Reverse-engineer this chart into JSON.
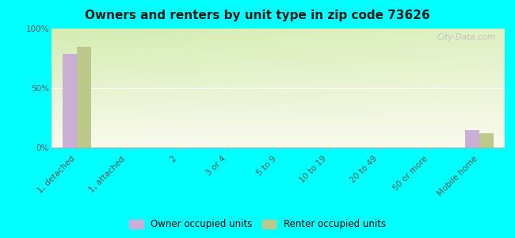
{
  "title": "Owners and renters by unit type in zip code 73626",
  "categories": [
    "1, detached",
    "1, attached",
    "2",
    "3 or 4",
    "5 to 9",
    "10 to 19",
    "20 to 49",
    "50 or more",
    "Mobile home"
  ],
  "owner_values": [
    79,
    0,
    0,
    0,
    0,
    0,
    0,
    0,
    15
  ],
  "renter_values": [
    85,
    0,
    0,
    0,
    0,
    0,
    0,
    0,
    12
  ],
  "owner_color": "#c9aed6",
  "renter_color": "#bcc98a",
  "outer_bg": "#00ffff",
  "ylim": [
    0,
    100
  ],
  "yticks": [
    0,
    50,
    100
  ],
  "ytick_labels": [
    "0%",
    "50%",
    "100%"
  ],
  "bar_width": 0.28,
  "legend_owner": "Owner occupied units",
  "legend_renter": "Renter occupied units",
  "watermark": "City-Data.com",
  "title_fontsize": 11,
  "axis_label_fontsize": 7.5
}
